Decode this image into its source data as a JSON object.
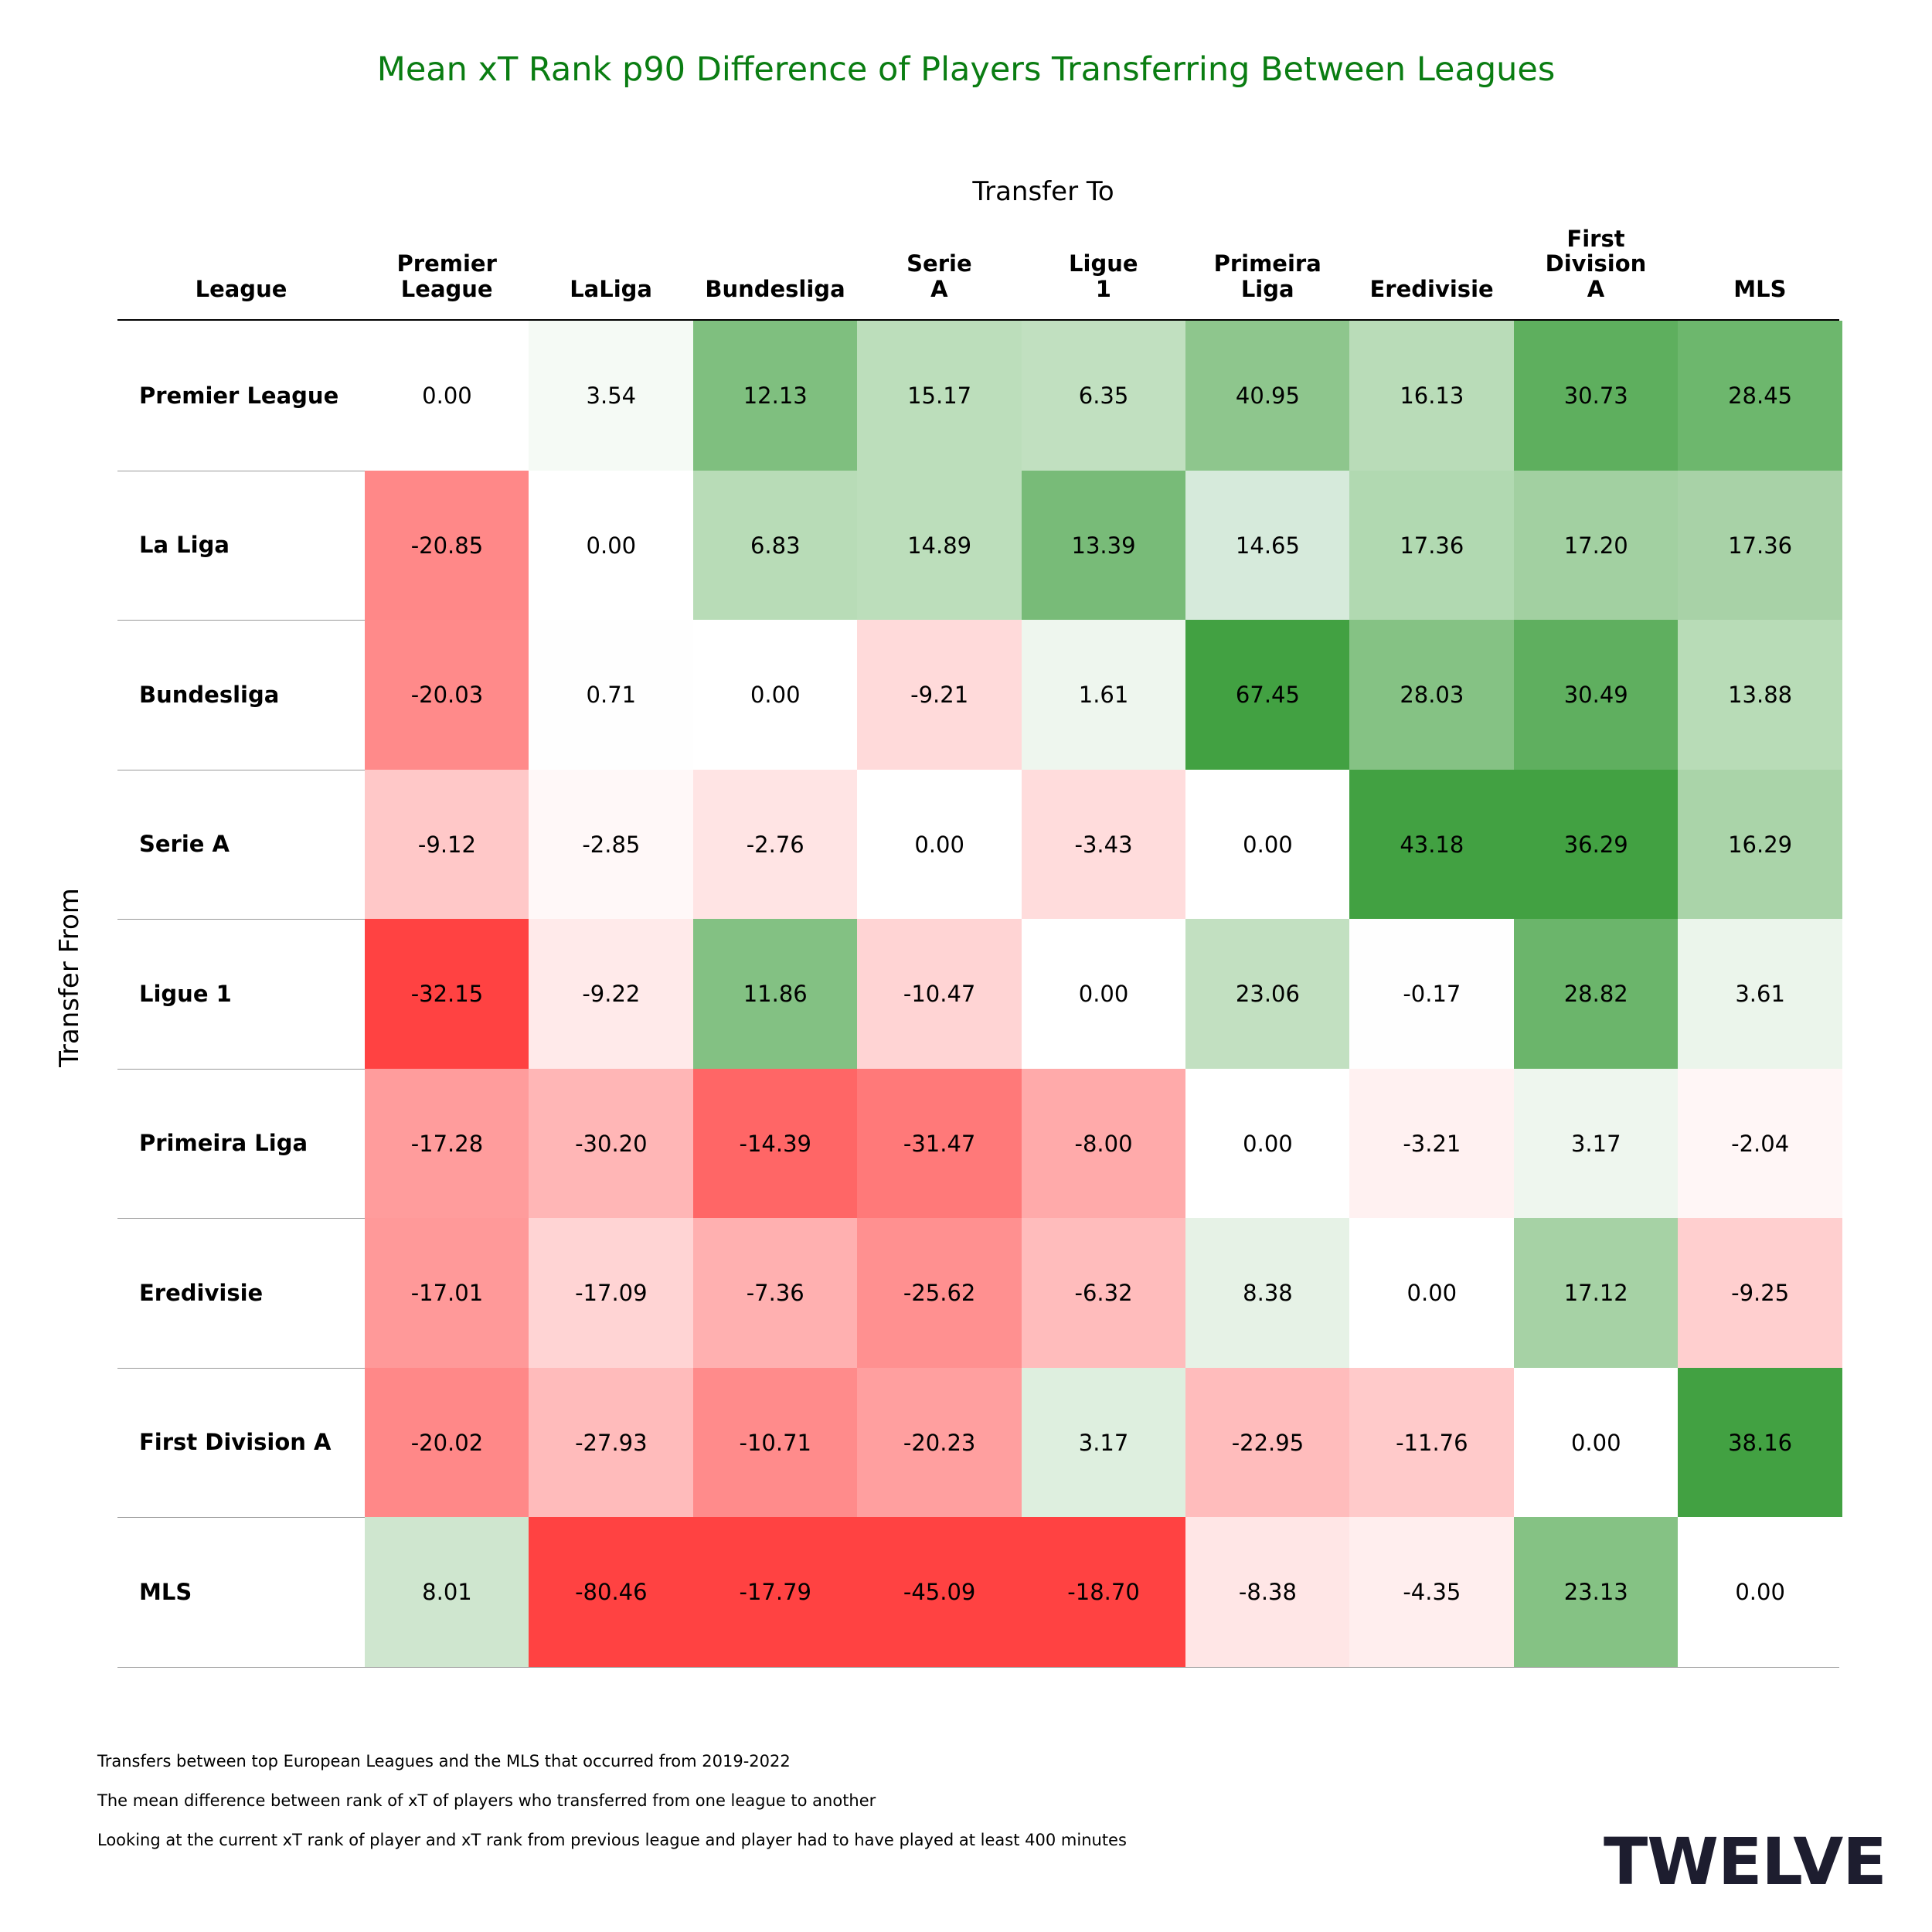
{
  "title": "Mean xT Rank p90 Difference of Players Transferring Between Leagues",
  "chart_data": {
    "type": "heatmap",
    "title": "Mean xT Rank p90 Difference of Players Transferring Between Leagues",
    "xlabel": "Transfer To",
    "ylabel": "Transfer From",
    "corner_label": "League",
    "columns": [
      "Premier\nLeague",
      "LaLiga",
      "Bundesliga",
      "Serie\nA",
      "Ligue\n1",
      "Primeira\nLiga",
      "Eredivisie",
      "First\nDivision\nA",
      "MLS"
    ],
    "rows": [
      "Premier League",
      "La Liga",
      "Bundesliga",
      "Serie A",
      "Ligue 1",
      "Primeira Liga",
      "Eredivisie",
      "First Division A",
      "MLS"
    ],
    "values": [
      [
        "0.00",
        "3.54",
        "12.13",
        "15.17",
        "6.35",
        "40.95",
        "16.13",
        "30.73",
        "28.45"
      ],
      [
        "-20.85",
        "0.00",
        "6.83",
        "14.89",
        "13.39",
        "14.65",
        "17.36",
        "17.20",
        "17.36"
      ],
      [
        "-20.03",
        "0.71",
        "0.00",
        "-9.21",
        "1.61",
        "67.45",
        "28.03",
        "30.49",
        "13.88"
      ],
      [
        "-9.12",
        "-2.85",
        "-2.76",
        "0.00",
        "-3.43",
        "0.00",
        "43.18",
        "36.29",
        "16.29"
      ],
      [
        "-32.15",
        "-9.22",
        "11.86",
        "-10.47",
        "0.00",
        "23.06",
        "-0.17",
        "28.82",
        "3.61"
      ],
      [
        "-17.28",
        "-30.20",
        "-14.39",
        "-31.47",
        "-8.00",
        "0.00",
        "-3.21",
        "3.17",
        "-2.04"
      ],
      [
        "-17.01",
        "-17.09",
        "-7.36",
        "-25.62",
        "-6.32",
        "8.38",
        "0.00",
        "17.12",
        "-9.25"
      ],
      [
        "-20.02",
        "-27.93",
        "-10.71",
        "-20.23",
        "3.17",
        "-22.95",
        "-11.76",
        "0.00",
        "38.16"
      ],
      [
        "8.01",
        "-80.46",
        "-17.79",
        "-45.09",
        "-18.70",
        "-8.38",
        "-4.35",
        "23.13",
        "0.00"
      ]
    ],
    "fills": [
      [
        "#ffffff",
        "#f5faf5",
        "#7fbf7f",
        "#bcdebb",
        "#c1e0c0",
        "#8ec68d",
        "#b9dcb8",
        "#5eaf5e",
        "#6db76d"
      ],
      [
        "#ff8888",
        "#ffffff",
        "#b8dcb7",
        "#bcdebb",
        "#78bb78",
        "#d6eadb",
        "#b1d9b1",
        "#a2d0a1",
        "#a8d2a7"
      ],
      [
        "#ff8a8a",
        "#fefefe",
        "#ffffff",
        "#ffdada",
        "#eef6ee",
        "#42a142",
        "#85c284",
        "#5faf5f",
        "#b8dcb7"
      ],
      [
        "#ffc8c8",
        "#fff8f8",
        "#ffe4e4",
        "#ffffff",
        "#ffdcdc",
        "#ffffff",
        "#42a142",
        "#42a142",
        "#aad4a9"
      ],
      [
        "#ff4242",
        "#ffeaea",
        "#83c183",
        "#ffd4d4",
        "#ffffff",
        "#c2e0c1",
        "#fefefe",
        "#6bb56b",
        "#ebf5eb"
      ],
      [
        "#ff9c9c",
        "#ffb6b6",
        "#ff6666",
        "#ff7979",
        "#ffaaaa",
        "#ffffff",
        "#fff1f1",
        "#eef6ee",
        "#fff6f6"
      ],
      [
        "#ff9999",
        "#ffd4d4",
        "#ffb0b0",
        "#ff9090",
        "#ffbcbc",
        "#e6f2e6",
        "#ffffff",
        "#a6d2a5",
        "#ffcfcf"
      ],
      [
        "#ff8888",
        "#ffbbbb",
        "#ff8b8b",
        "#ff9f9f",
        "#deefdf",
        "#ffbcbc",
        "#ffcaca",
        "#ffffff",
        "#42a142"
      ],
      [
        "#cfe6cf",
        "#ff4242",
        "#ff4242",
        "#ff4242",
        "#ff4242",
        "#ffe6e6",
        "#ffeeee",
        "#85c284",
        "#ffffff"
      ]
    ]
  },
  "notes": [
    "Transfers between top European Leagues and the MLS that occurred from 2019-2022",
    "The mean difference between rank of xT of players who transferred from one league to another",
    "Looking at the current xT rank of player and xT rank from previous league and player had to have played at least 400 minutes"
  ],
  "logo": "TWELVE",
  "colors": {
    "title": "#0a7d12",
    "logo": "#1d1d2f"
  }
}
